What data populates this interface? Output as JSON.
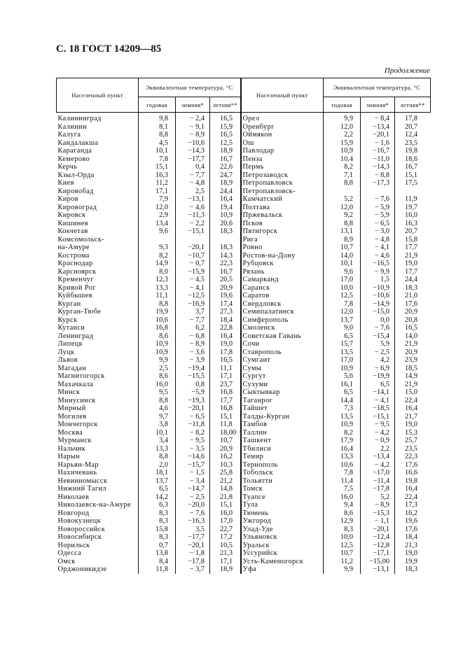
{
  "header": {
    "title": "С. 18 ГОСТ 14209—85",
    "continuation": "Продолжение"
  },
  "table": {
    "col_place": "Населенный пункт",
    "col_group": "Эквивалентная температура, °С",
    "col_year": "годовая",
    "col_winter": "зимняя*",
    "col_summer": "летняя**"
  },
  "left": [
    [
      "Калининград",
      "9,8",
      "− 2,4",
      "16,5"
    ],
    [
      "Калинин",
      "8,1",
      "− 9,1",
      "15,9"
    ],
    [
      "Калуга",
      "8,8",
      "− 8,9",
      "16,5"
    ],
    [
      "Кандалакша",
      "4,5",
      "−10,6",
      "12,5"
    ],
    [
      "Караганда",
      "10,1",
      "−14,3",
      "18,9"
    ],
    [
      "Кемерово",
      "7,8",
      "−17,7",
      "16,7"
    ],
    [
      "Керчь",
      "15,1",
      "0,4",
      "22,6"
    ],
    [
      "Кзыл-Орда",
      "16,3",
      "− 7,7",
      "24,7"
    ],
    [
      "Киев",
      "11,2",
      "− 4,8",
      "18,9"
    ],
    [
      "Кировобад",
      "17,1",
      "2,5",
      "24,4"
    ],
    [
      "Киров",
      "7,9",
      "−13,1",
      "16,4"
    ],
    [
      "Кировоград",
      "12,0",
      "− 4,6",
      "19,4"
    ],
    [
      "Кировск",
      "2,9",
      "−11,3",
      "10,9"
    ],
    [
      "Кишинев",
      "13,4",
      "− 2,2",
      "20,6"
    ],
    [
      "Кокчетав",
      "9,6",
      "−15,1",
      "18,3"
    ],
    [
      "Комсомольск-",
      "",
      "",
      ""
    ],
    [
      "на-Амуре",
      "9,3",
      "−20,1",
      "18,3"
    ],
    [
      "Кострома",
      "8,2",
      "−10,7",
      "14,3"
    ],
    [
      "Краснодар",
      "14,9",
      "− 0,7",
      "22,3"
    ],
    [
      "Карсноярск",
      "8,0",
      "−15,9",
      "16,7"
    ],
    [
      "Кременчуг",
      "12,3",
      "− 4,5",
      "20,5"
    ],
    [
      "Кривой Рог",
      "13,3",
      "− 4,1",
      "20,9"
    ],
    [
      "Куйбышев",
      "11,1",
      "−12,5",
      "19,6"
    ],
    [
      "Курган",
      "8,8",
      "−16,9",
      "17,4"
    ],
    [
      "Курган-Тюбе",
      "19,9",
      "3,7",
      "27,3"
    ],
    [
      "Курск",
      "10,6",
      "− 7,7",
      "18,4"
    ],
    [
      "Кутаиси",
      "16,8",
      "6,2",
      "22,8"
    ],
    [
      "Ленинград",
      "8,6",
      "− 6,8",
      "16,4"
    ],
    [
      "Липецк",
      "10,9",
      "− 8,9",
      "19,0"
    ],
    [
      "Луцк",
      "10,9",
      "− 3,6",
      "17,8"
    ],
    [
      "Львов",
      "9,9",
      "− 3,9",
      "16,5"
    ],
    [
      "Магадан",
      "2,5",
      "−19,4",
      "11,1"
    ],
    [
      "Магнитогорск",
      "8,6",
      "−15,5",
      "17,1"
    ],
    [
      "Махачкала",
      "16,0",
      "0,8",
      "23,7"
    ],
    [
      "Минск",
      "9,5",
      "−5,9",
      "16,8"
    ],
    [
      "Минусинск",
      "8,8",
      "−19,3",
      "17,7"
    ],
    [
      "Мирный",
      "4,6",
      "−20,1",
      "16,8"
    ],
    [
      "Могилев",
      "9,7",
      "− 6,5",
      "15,1"
    ],
    [
      "Мончегорск",
      "3,8",
      "−11,8",
      "11,8"
    ],
    [
      "Москва",
      "10,1",
      "− 8,2",
      "18,00"
    ],
    [
      "Мурманск",
      "3,4",
      "− 9,5",
      "10,7"
    ],
    [
      "Нальчик",
      "13,3",
      "− 3,5",
      "20,9"
    ],
    [
      "Нарын",
      "8,8",
      "−14,6",
      "16,2"
    ],
    [
      "Нарьян-Мар",
      "2,0",
      "−15,7",
      "10,3"
    ],
    [
      "Нахичевань",
      "18,1",
      "− 1,5",
      "25,8"
    ],
    [
      "Невинномысск",
      "13,7",
      "− 3,4",
      "21,2"
    ],
    [
      "Нижний Тагил",
      "6,5",
      "−14,7",
      "14,8"
    ],
    [
      "Николаев",
      "14,2",
      "− 2,5",
      "21,8"
    ],
    [
      "Николаевск-на-Амуре",
      "6,3",
      "−20,0",
      "15,1"
    ],
    [
      "Новгород",
      "8,3",
      "− 7,6",
      "16,0"
    ],
    [
      "Новокузнецк",
      "8,3",
      "−16,3",
      "17,0"
    ],
    [
      "Новороссийск",
      "15,8",
      "3,5",
      "22,7"
    ],
    [
      "Новосибирск",
      "8,3",
      "−17,7",
      "17,2"
    ],
    [
      "Норильск",
      "0,7",
      "−20,1",
      "10,5"
    ],
    [
      "Одесса",
      "13,8",
      "− 1,8",
      "21,3"
    ],
    [
      "Омск",
      "8,4",
      "−17,8",
      "17,1"
    ],
    [
      "Орджоникидзе",
      "11,8",
      "− 3,7",
      "18,9"
    ]
  ],
  "right": [
    [
      "Орел",
      "9,9",
      "− 8,4",
      "17,8"
    ],
    [
      "Оренбург",
      "12,0",
      "−13,4",
      "20,7"
    ],
    [
      "Оймякон",
      "2,2",
      "−20,1",
      "12,4"
    ],
    [
      "Ош",
      "15,9",
      "− 1,6",
      "23,5"
    ],
    [
      "Павлодар",
      "10,9",
      "−16,7",
      "19,8"
    ],
    [
      "Пенза",
      "10,4",
      "−11,0",
      "18,6"
    ],
    [
      "Пермь",
      "8,2",
      "−14,3",
      "16,7"
    ],
    [
      "Петрозаводск",
      "7,1",
      "− 8,8",
      "15,1"
    ],
    [
      "Петропавловск",
      "8,8",
      "−17,3",
      "17,5"
    ],
    [
      "Петропавловск-",
      "",
      "",
      ""
    ],
    [
      "Камчатский",
      "5,2",
      "− 7,6",
      "11,9"
    ],
    [
      "Полтава",
      "12,0",
      "− 5,9",
      "19,7"
    ],
    [
      "Пржевальск",
      "9,2",
      "− 5,9",
      "16,0"
    ],
    [
      "Псков",
      "8,8",
      "− 6,5",
      "16,3"
    ],
    [
      "Пятигорск",
      "13,1",
      "− 3,0",
      "20,7"
    ],
    [
      "Рига",
      "8,9",
      "− 4,8",
      "15,8"
    ],
    [
      "Ровно",
      "10,7",
      "− 4,1",
      "17,7"
    ],
    [
      "Ростов-на-Дону",
      "14,0",
      "− 4,6",
      "21,9"
    ],
    [
      "Рубцовск",
      "10,1",
      "−16,5",
      "19,0"
    ],
    [
      "Рязань",
      "9,6",
      "− 9,9",
      "17,7"
    ],
    [
      "Самарканд",
      "17,0",
      "1,5",
      "24,4"
    ],
    [
      "Саранск",
      "10,0",
      "−10,9",
      "18,3"
    ],
    [
      "Саратов",
      "12,5",
      "−10,6",
      "21,0"
    ],
    [
      "Свердловск",
      "7,8",
      "−14,9",
      "17,6"
    ],
    [
      "Семипалатинск",
      "12,0",
      "−15,0",
      "20,9"
    ],
    [
      "Симферополь",
      "13,7",
      "0,0",
      "20,8"
    ],
    [
      "Смоленск",
      "9,0",
      "− 7,6",
      "16,5"
    ],
    [
      "Советская Гавань",
      "6,5",
      "−15,4",
      "14,0"
    ],
    [
      "Сочи",
      "15,7",
      "5,9",
      "21,9"
    ],
    [
      "Ставрополь",
      "13,5",
      "− 2,5",
      "20,9"
    ],
    [
      "Сумгаит",
      "17,0",
      "4,2",
      "23,9"
    ],
    [
      "Сумы",
      "10,9",
      "− 6,9",
      "18,5"
    ],
    [
      "Сургут",
      "5,6",
      "−19,9",
      "14,9"
    ],
    [
      "Сухуми",
      "16,1",
      "6,5",
      "21,9"
    ],
    [
      "Сыктывкар",
      "6,5",
      "−14,1",
      "15,0"
    ],
    [
      "Таганрог",
      "14,4",
      "− 4,1",
      "22,4"
    ],
    [
      "Тайшет",
      "7,3",
      "−18,5",
      "16,4"
    ],
    [
      "Талды-Курган",
      "13,5",
      "−15,1",
      "21,7"
    ],
    [
      "Тамбов",
      "10,9",
      "− 9,5",
      "19,0"
    ],
    [
      "Таллин",
      "8,2",
      "− 4,2",
      "15,3"
    ],
    [
      "Ташкент",
      "17,9",
      "− 0,9",
      "25,7"
    ],
    [
      "Тбилиси",
      "16,4",
      "2,2",
      "23,5"
    ],
    [
      "Темир",
      "13,3",
      "−13,4",
      "22,3"
    ],
    [
      "Тернополь",
      "10,6",
      "− 4,2",
      "17,6"
    ],
    [
      "Тобольск",
      "7,8",
      "−17,0",
      "16,6"
    ],
    [
      "Тольятти",
      "11,4",
      "−11,4",
      "19,8"
    ],
    [
      "Томск",
      "7,5",
      "−17,8",
      "16,4"
    ],
    [
      "Туапсе",
      "16,0",
      "5,2",
      "22,4"
    ],
    [
      "Тула",
      "9,4",
      "− 8,9",
      "17,3"
    ],
    [
      "Тюмень",
      "8,6",
      "−15,3",
      "16,2"
    ],
    [
      "Ужгород",
      "12,9",
      "− 1,1",
      "19,6"
    ],
    [
      "Улад-Уде",
      "8,3",
      "−20,1",
      "17,6"
    ],
    [
      "Ульяновск",
      "10,0",
      "−12,4",
      "18,4"
    ],
    [
      "Уральск",
      "12,5",
      "−12,8",
      "21,3"
    ],
    [
      "Уссурийск",
      "10,7",
      "−17,1",
      "19,0"
    ],
    [
      "Усть-Каменогорск",
      "11,2",
      "−15,00",
      "19,9"
    ],
    [
      "Уфа",
      "9,9",
      "−13,1",
      "18,3"
    ]
  ]
}
